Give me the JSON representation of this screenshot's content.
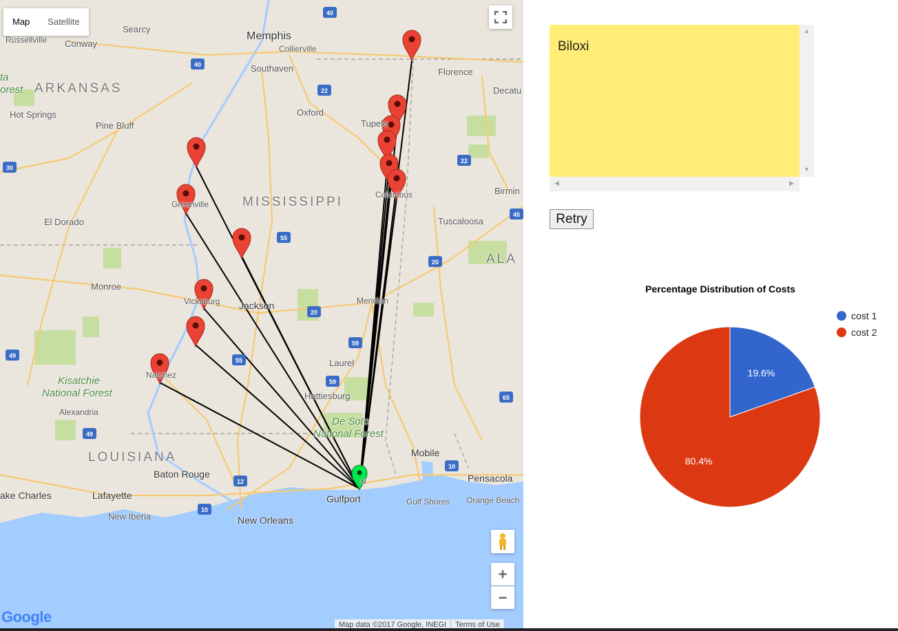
{
  "map": {
    "type_buttons": [
      {
        "label": "Map",
        "active": true
      },
      {
        "label": "Satellite",
        "active": false
      }
    ],
    "labels": [
      {
        "text": "Searcy",
        "cls": ""
      },
      {
        "text": "Russellville",
        "cls": ""
      },
      {
        "text": "Conway",
        "cls": ""
      },
      {
        "text": "Memphis",
        "cls": "big"
      },
      {
        "text": "Collierville",
        "cls": ""
      },
      {
        "text": "Southaven",
        "cls": ""
      },
      {
        "text": "ARKANSAS",
        "cls": "state"
      },
      {
        "text": "Hot Springs",
        "cls": ""
      },
      {
        "text": "Pine Bluff",
        "cls": ""
      },
      {
        "text": "Oxford",
        "cls": ""
      },
      {
        "text": "Tupelo",
        "cls": ""
      },
      {
        "text": "Florence",
        "cls": ""
      },
      {
        "text": "Decatu",
        "cls": ""
      },
      {
        "text": "Greenville",
        "cls": ""
      },
      {
        "text": "MISSISSIPPI",
        "cls": "state"
      },
      {
        "text": "Columbus",
        "cls": ""
      },
      {
        "text": "Birmin",
        "cls": ""
      },
      {
        "text": "El Dorado",
        "cls": ""
      },
      {
        "text": "Tuscaloosa",
        "cls": ""
      },
      {
        "text": "ALA",
        "cls": "state"
      },
      {
        "text": "Monroe",
        "cls": ""
      },
      {
        "text": "Vicksburg",
        "cls": ""
      },
      {
        "text": "Jackson",
        "cls": "big"
      },
      {
        "text": "Meridian",
        "cls": ""
      },
      {
        "text": "Laurel",
        "cls": ""
      },
      {
        "text": "Natchez",
        "cls": ""
      },
      {
        "text": "Kisatchie",
        "cls": "forest"
      },
      {
        "text": "National Forest",
        "cls": "forest"
      },
      {
        "text": "Alexandria",
        "cls": ""
      },
      {
        "text": "Hattiesburg",
        "cls": ""
      },
      {
        "text": "De Soto",
        "cls": "forest"
      },
      {
        "text": "National Forest",
        "cls": "forest"
      },
      {
        "text": "LOUISIANA",
        "cls": "state"
      },
      {
        "text": "Mobile",
        "cls": "big"
      },
      {
        "text": "Baton Rouge",
        "cls": "big"
      },
      {
        "text": "Pensacola",
        "cls": "big"
      },
      {
        "text": "Gulfport",
        "cls": "big"
      },
      {
        "text": "ake Charles",
        "cls": "big"
      },
      {
        "text": "Lafayette",
        "cls": "big"
      },
      {
        "text": "Gulf Shores",
        "cls": ""
      },
      {
        "text": "Orange Beach",
        "cls": ""
      },
      {
        "text": "New Iberia",
        "cls": ""
      },
      {
        "text": "New Orleans",
        "cls": "big"
      },
      {
        "text": "ta",
        "cls": "forest"
      },
      {
        "text": "orest",
        "cls": "forest"
      },
      {
        "text": "xi",
        "cls": ""
      }
    ],
    "highways": [
      "40",
      "40",
      "22",
      "22",
      "30",
      "55",
      "20",
      "20",
      "59",
      "59",
      "55",
      "49",
      "49",
      "65",
      "12",
      "10",
      "10",
      "45"
    ],
    "google_logo": "Google",
    "footer": {
      "data": "Map data ©2017 Google, INEGI",
      "terms": "Terms of Use"
    },
    "controls": {
      "zoom_in": "+",
      "zoom_out": "−"
    },
    "icons": {
      "fullscreen": "fullscreen-icon",
      "pegman": "pegman-icon"
    },
    "colors": {
      "route": "#000000",
      "marker_red": "#ea4335",
      "marker_green": "#00e64d",
      "water": "#a3ccff",
      "land": "#eae6dd"
    }
  },
  "note": {
    "text": "Biloxi",
    "bg_color": "#ffed76"
  },
  "retry_label": "Retry",
  "chart_data": {
    "type": "pie",
    "title": "Percentage Distribution of Costs",
    "categories": [
      "cost 1",
      "cost 2"
    ],
    "values": [
      19.6,
      80.4
    ],
    "labels": [
      "19.6%",
      "80.4%"
    ],
    "colors": [
      "#3366cc",
      "#dc3912"
    ],
    "legend_position": "right"
  }
}
